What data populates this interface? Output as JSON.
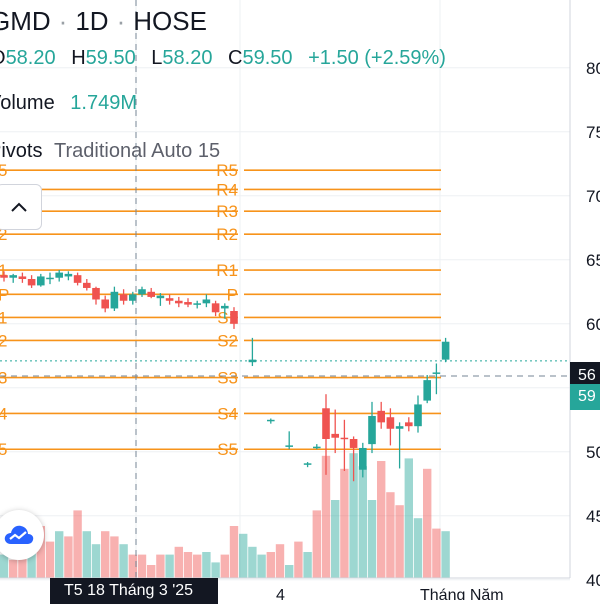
{
  "header": {
    "symbol": "GMD",
    "interval": "1D",
    "exchange": "HOSE",
    "open_label": "O",
    "open": "58.20",
    "high_label": "H",
    "high": "59.50",
    "low_label": "L",
    "low": "58.20",
    "close_label": "C",
    "close": "59.50",
    "change": "+1.50 (+2.59%)"
  },
  "volume": {
    "label": "Volume",
    "value": "1.749M"
  },
  "pivots": {
    "label": "Pivots",
    "settings": "Traditional Auto 15"
  },
  "price_axis": {
    "ticks": [
      "80",
      "75",
      "70",
      "65",
      "60",
      "55",
      "50",
      "45",
      "40"
    ],
    "crosshair_price": "56",
    "last_price": "59"
  },
  "time_axis": {
    "crosshair_date": "T5 18 Tháng 3 '25",
    "labels": [
      "4",
      "Tháng Năm"
    ]
  },
  "colors": {
    "up": "#26a69a",
    "down": "#ef5350",
    "pivot": "#f7931a",
    "crosshair_badge": "#131722"
  },
  "icons": {
    "collapse": "chevron-up-icon",
    "logo": "cloud-logo-icon"
  },
  "chart_data": {
    "type": "candlestick",
    "pivot_levels": {
      "R5": 72.0,
      "R4": 70.5,
      "R3": 68.8,
      "R2": 67.0,
      "R1": 64.2,
      "P": 62.3,
      "S1": 60.5,
      "S2": 58.7,
      "S3": 55.8,
      "S4": 53.0,
      "S5": 50.2
    },
    "candles": [
      {
        "o": 63.8,
        "h": 64.1,
        "l": 63.3,
        "c": 63.6
      },
      {
        "o": 63.6,
        "h": 63.9,
        "l": 63.2,
        "c": 63.8
      },
      {
        "o": 63.7,
        "h": 64.0,
        "l": 63.2,
        "c": 63.5
      },
      {
        "o": 63.5,
        "h": 63.8,
        "l": 62.8,
        "c": 63.0
      },
      {
        "o": 63.0,
        "h": 63.9,
        "l": 62.9,
        "c": 63.7
      },
      {
        "o": 63.5,
        "h": 64.0,
        "l": 63.1,
        "c": 63.6
      },
      {
        "o": 63.6,
        "h": 64.2,
        "l": 63.3,
        "c": 64.0
      },
      {
        "o": 63.7,
        "h": 64.1,
        "l": 63.4,
        "c": 63.9
      },
      {
        "o": 63.8,
        "h": 64.0,
        "l": 63.0,
        "c": 63.2
      },
      {
        "o": 63.2,
        "h": 63.5,
        "l": 62.6,
        "c": 62.8
      },
      {
        "o": 62.8,
        "h": 62.9,
        "l": 61.5,
        "c": 61.9
      },
      {
        "o": 61.9,
        "h": 62.2,
        "l": 60.9,
        "c": 61.2
      },
      {
        "o": 61.2,
        "h": 62.9,
        "l": 61.0,
        "c": 62.5
      },
      {
        "o": 62.3,
        "h": 62.7,
        "l": 61.5,
        "c": 61.8
      },
      {
        "o": 61.8,
        "h": 62.5,
        "l": 61.5,
        "c": 62.3
      },
      {
        "o": 62.3,
        "h": 62.9,
        "l": 62.1,
        "c": 62.7
      },
      {
        "o": 62.5,
        "h": 62.8,
        "l": 62.0,
        "c": 62.1
      },
      {
        "o": 62.0,
        "h": 62.4,
        "l": 61.4,
        "c": 62.2
      },
      {
        "o": 62.0,
        "h": 62.3,
        "l": 61.5,
        "c": 61.8
      },
      {
        "o": 61.8,
        "h": 62.1,
        "l": 61.3,
        "c": 61.6
      },
      {
        "o": 61.7,
        "h": 62.0,
        "l": 61.3,
        "c": 61.5
      },
      {
        "o": 61.5,
        "h": 61.8,
        "l": 61.2,
        "c": 61.6
      },
      {
        "o": 61.6,
        "h": 62.3,
        "l": 61.3,
        "c": 61.9
      },
      {
        "o": 61.6,
        "h": 61.8,
        "l": 60.6,
        "c": 60.9
      },
      {
        "o": 61.2,
        "h": 61.6,
        "l": 60.4,
        "c": 61.4
      },
      {
        "o": 61.0,
        "h": 61.3,
        "l": 59.6,
        "c": 60.0
      },
      null,
      {
        "o": 57.0,
        "h": 58.9,
        "l": 56.7,
        "c": 57.2
      },
      null,
      {
        "o": 52.4,
        "h": 52.6,
        "l": 52.2,
        "c": 52.5
      },
      null,
      {
        "o": 50.5,
        "h": 51.6,
        "l": 50.2,
        "c": 50.5
      },
      null,
      {
        "o": 49.0,
        "h": 49.2,
        "l": 48.8,
        "c": 49.1
      },
      {
        "o": 50.4,
        "h": 50.6,
        "l": 50.2,
        "c": 50.4
      },
      {
        "o": 53.4,
        "h": 54.5,
        "l": 48.2,
        "c": 51.0
      },
      {
        "o": 51.4,
        "h": 53.3,
        "l": 49.9,
        "c": 51.1
      },
      {
        "o": 51.1,
        "h": 52.5,
        "l": 48.5,
        "c": 51.0
      },
      {
        "o": 51.0,
        "h": 51.2,
        "l": 47.7,
        "c": 50.3
      },
      {
        "o": 48.6,
        "h": 50.7,
        "l": 48.0,
        "c": 50.3
      },
      {
        "o": 50.6,
        "h": 53.9,
        "l": 49.9,
        "c": 52.8
      },
      {
        "o": 53.2,
        "h": 53.9,
        "l": 51.8,
        "c": 52.3
      },
      {
        "o": 52.7,
        "h": 53.4,
        "l": 50.5,
        "c": 51.8
      },
      {
        "o": 51.8,
        "h": 52.3,
        "l": 48.7,
        "c": 52.0
      },
      {
        "o": 52.3,
        "h": 52.7,
        "l": 51.6,
        "c": 52.0
      },
      {
        "o": 52.0,
        "h": 54.4,
        "l": 51.5,
        "c": 53.7
      },
      {
        "o": 54.0,
        "h": 56.0,
        "l": 53.8,
        "c": 55.6
      },
      {
        "o": 56.2,
        "h": 56.9,
        "l": 54.5,
        "c": 56.2
      },
      {
        "o": 57.2,
        "h": 58.9,
        "l": 57.0,
        "c": 58.6
      }
    ],
    "volume": [
      {
        "v": 0.9,
        "dir": "up"
      },
      {
        "v": 0.7,
        "dir": "down"
      },
      {
        "v": 1.8,
        "dir": "down"
      },
      {
        "v": 1.5,
        "dir": "up"
      },
      {
        "v": 2.0,
        "dir": "down"
      },
      {
        "v": 1.4,
        "dir": "down"
      },
      {
        "v": 1.8,
        "dir": "up"
      },
      {
        "v": 1.6,
        "dir": "down"
      },
      {
        "v": 2.6,
        "dir": "down"
      },
      {
        "v": 1.8,
        "dir": "up"
      },
      {
        "v": 1.3,
        "dir": "up"
      },
      {
        "v": 1.8,
        "dir": "down"
      },
      {
        "v": 1.6,
        "dir": "down"
      },
      {
        "v": 1.3,
        "dir": "up"
      },
      {
        "v": 0.9,
        "dir": "down"
      },
      {
        "v": 0.9,
        "dir": "down"
      },
      {
        "v": 0.5,
        "dir": "down"
      },
      {
        "v": 0.9,
        "dir": "down"
      },
      {
        "v": 0.9,
        "dir": "up"
      },
      {
        "v": 1.2,
        "dir": "down"
      },
      {
        "v": 1.0,
        "dir": "down"
      },
      {
        "v": 0.9,
        "dir": "down"
      },
      {
        "v": 1.0,
        "dir": "up"
      },
      {
        "v": 0.6,
        "dir": "up"
      },
      {
        "v": 0.9,
        "dir": "down"
      },
      {
        "v": 2.0,
        "dir": "down"
      },
      {
        "v": 1.7,
        "dir": "up"
      },
      {
        "v": 1.2,
        "dir": "up"
      },
      {
        "v": 0.9,
        "dir": "up"
      },
      {
        "v": 1.0,
        "dir": "down"
      },
      {
        "v": 1.3,
        "dir": "down"
      },
      {
        "v": 0.5,
        "dir": "up"
      },
      {
        "v": 1.4,
        "dir": "down"
      },
      {
        "v": 1.0,
        "dir": "up"
      },
      {
        "v": 2.6,
        "dir": "down"
      },
      {
        "v": 4.7,
        "dir": "down"
      },
      {
        "v": 3.0,
        "dir": "up"
      },
      {
        "v": 4.2,
        "dir": "down"
      },
      {
        "v": 4.8,
        "dir": "up"
      },
      {
        "v": 4.3,
        "dir": "up"
      },
      {
        "v": 3.0,
        "dir": "up"
      },
      {
        "v": 4.5,
        "dir": "down"
      },
      {
        "v": 3.3,
        "dir": "down"
      },
      {
        "v": 2.8,
        "dir": "down"
      },
      {
        "v": 4.6,
        "dir": "up"
      },
      {
        "v": 2.3,
        "dir": "up"
      },
      {
        "v": 4.2,
        "dir": "down"
      },
      {
        "v": 1.9,
        "dir": "down"
      },
      {
        "v": 1.8,
        "dir": "up"
      }
    ]
  }
}
